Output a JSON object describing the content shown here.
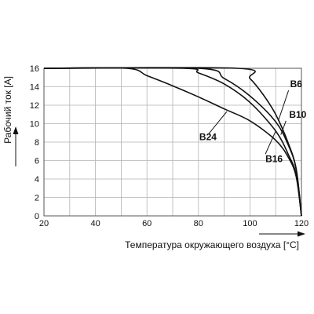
{
  "chart_data": {
    "type": "line",
    "title": "",
    "xlabel": "Температура окружающего воздуха [°C]",
    "ylabel": "Рабочий ток [A]",
    "xlim": [
      20,
      120
    ],
    "ylim": [
      0,
      16
    ],
    "x_ticks": [
      "20",
      "40",
      "60",
      "80",
      "100",
      "120"
    ],
    "y_ticks": [
      "0",
      "2",
      "4",
      "6",
      "8",
      "10",
      "12",
      "14",
      "16"
    ],
    "grid": true,
    "series": [
      {
        "name": "B6",
        "x": [
          20,
          95,
          100,
          105,
          110,
          115,
          118,
          120
        ],
        "y": [
          16,
          16,
          14.9,
          13.2,
          11.0,
          7.8,
          5.0,
          0
        ],
        "label_at": [
          115,
          13.6
        ],
        "leader_to": [
          111,
          10.3
        ]
      },
      {
        "name": "B10",
        "x": [
          20,
          80,
          90,
          100,
          110,
          115,
          118,
          120
        ],
        "y": [
          16,
          16,
          14.9,
          13.0,
          10.2,
          7.6,
          5.0,
          0
        ],
        "label_at": [
          114,
          10.3
        ],
        "leader_to": [
          112,
          8.8
        ]
      },
      {
        "name": "B16",
        "x": [
          20,
          74,
          80,
          90,
          100,
          110,
          115,
          118,
          120
        ],
        "y": [
          16,
          16,
          15.5,
          14.3,
          12.3,
          9.2,
          6.6,
          4.4,
          0
        ],
        "label_at": [
          106,
          6.7
        ],
        "leader_to": [
          110,
          9.2
        ]
      },
      {
        "name": "B24",
        "x": [
          20,
          52,
          60,
          70,
          80,
          90,
          100,
          110,
          115,
          118,
          120
        ],
        "y": [
          16,
          16,
          15.2,
          14.1,
          12.9,
          11.6,
          10.3,
          8.2,
          6.3,
          4.2,
          0
        ],
        "label_at": [
          84,
          8.9
        ],
        "leader_to": [
          91,
          11.3
        ]
      }
    ]
  }
}
